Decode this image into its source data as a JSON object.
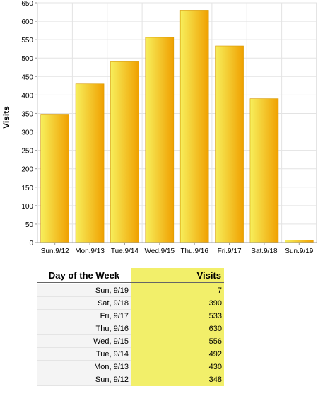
{
  "chart_data": {
    "type": "bar",
    "title": "",
    "xlabel": "",
    "ylabel": "Visits",
    "ylim": [
      0,
      650
    ],
    "ytick_step": 50,
    "grid": true,
    "categories": [
      "Sun.9/12",
      "Mon.9/13",
      "Tue.9/14",
      "Wed.9/15",
      "Thu.9/16",
      "Fri.9/17",
      "Sat.9/18",
      "Sun.9/19"
    ],
    "values": [
      348,
      430,
      492,
      556,
      630,
      533,
      390,
      7
    ]
  },
  "table": {
    "col_day": "Day of the Week",
    "col_visits": "Visits",
    "rows": [
      {
        "day": "Sun, 9/19",
        "visits": "7"
      },
      {
        "day": "Sat, 9/18",
        "visits": "390"
      },
      {
        "day": "Fri, 9/17",
        "visits": "533"
      },
      {
        "day": "Thu, 9/16",
        "visits": "630"
      },
      {
        "day": "Wed, 9/15",
        "visits": "556"
      },
      {
        "day": "Tue, 9/14",
        "visits": "492"
      },
      {
        "day": "Mon, 9/13",
        "visits": "430"
      },
      {
        "day": "Sun, 9/12",
        "visits": "348"
      }
    ]
  },
  "colors": {
    "bar_light": "#f7ef5c",
    "bar_dark": "#f0a000",
    "bar_edge": "#d89a00",
    "table_highlight": "#f2ef6a"
  }
}
